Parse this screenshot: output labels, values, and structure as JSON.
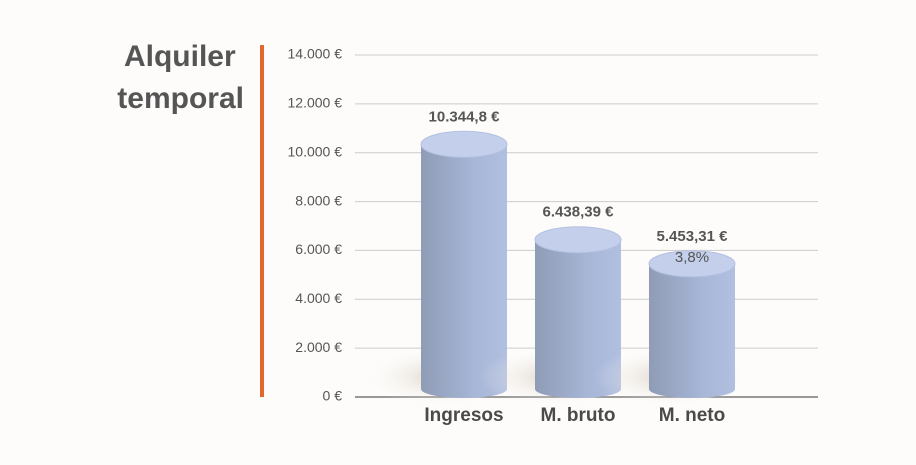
{
  "chart_data": {
    "type": "cylinder-bar",
    "title": "Alquiler temporal",
    "categories": [
      "Ingresos",
      "M. bruto",
      "M. neto"
    ],
    "values": [
      10344.8,
      6438.39,
      5453.31
    ],
    "value_labels": [
      "10.344,8 €",
      "6.438,39 €",
      "5.453,31 €"
    ],
    "annotation": "3,8%",
    "color": "#a4b3d6",
    "accent_color": "#e2672c",
    "ylim": [
      0,
      14000
    ],
    "yticks": [
      {
        "value": 0,
        "label": "0 €"
      },
      {
        "value": 2000,
        "label": "2.000 €"
      },
      {
        "value": 4000,
        "label": "4.000 €"
      },
      {
        "value": 6000,
        "label": "6.000 €"
      },
      {
        "value": 8000,
        "label": "8.000 €"
      },
      {
        "value": 10000,
        "label": "10.000 €"
      },
      {
        "value": 12000,
        "label": "12.000 €"
      },
      {
        "value": 14000,
        "label": "14.000 €"
      }
    ],
    "grid": true
  }
}
